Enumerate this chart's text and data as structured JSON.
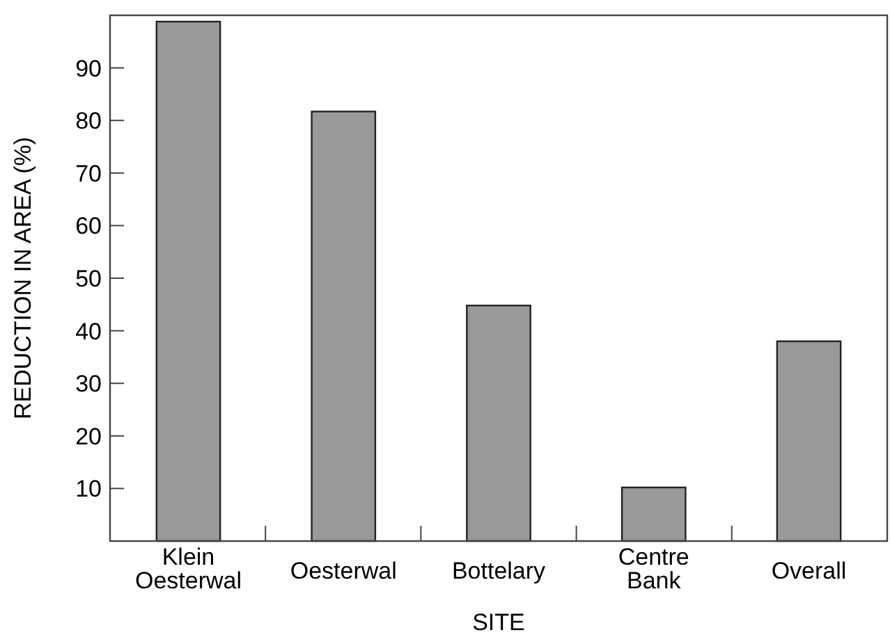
{
  "chart_data": {
    "type": "bar",
    "xlabel": "SITE",
    "ylabel": "REDUCTION IN AREA (%)",
    "categories": [
      "Klein Oesterwal",
      "Oesterwal",
      "Bottelary",
      "Centre Bank",
      "Overall"
    ],
    "values": [
      98.8,
      81.7,
      44.8,
      10.2,
      38
    ],
    "color": "#999999",
    "ylim": [
      0,
      100
    ],
    "yticks": [
      10,
      20,
      30,
      40,
      50,
      60,
      70,
      80,
      90
    ],
    "grid": false
  }
}
